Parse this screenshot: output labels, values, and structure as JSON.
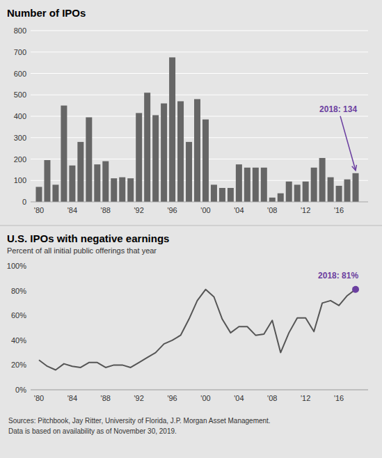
{
  "chart_data": [
    {
      "type": "bar",
      "title": "Number of IPOs",
      "x": [
        1980,
        1981,
        1982,
        1983,
        1984,
        1985,
        1986,
        1987,
        1988,
        1989,
        1990,
        1991,
        1992,
        1993,
        1994,
        1995,
        1996,
        1997,
        1998,
        1999,
        2000,
        2001,
        2002,
        2003,
        2004,
        2005,
        2006,
        2007,
        2008,
        2009,
        2010,
        2011,
        2012,
        2013,
        2014,
        2015,
        2016,
        2017,
        2018
      ],
      "values": [
        70,
        195,
        80,
        450,
        170,
        280,
        395,
        175,
        190,
        110,
        115,
        110,
        415,
        510,
        405,
        460,
        675,
        470,
        280,
        480,
        385,
        80,
        65,
        65,
        175,
        160,
        160,
        160,
        20,
        40,
        95,
        80,
        95,
        160,
        205,
        115,
        75,
        105,
        134
      ],
      "color": "#666666",
      "xlim": [
        1979,
        2019.5
      ],
      "xticks": [
        {
          "value": 1980,
          "label": "'80"
        },
        {
          "value": 1984,
          "label": "'84"
        },
        {
          "value": 1988,
          "label": "'88"
        },
        {
          "value": 1992,
          "label": "'92"
        },
        {
          "value": 1996,
          "label": "'96"
        },
        {
          "value": 2000,
          "label": "'00"
        },
        {
          "value": 2004,
          "label": "'04"
        },
        {
          "value": 2008,
          "label": "'08"
        },
        {
          "value": 2012,
          "label": "'12"
        },
        {
          "value": 2016,
          "label": "'16"
        }
      ],
      "ylim": [
        0,
        800
      ],
      "yticks": [
        0,
        100,
        200,
        300,
        400,
        500,
        600,
        700,
        800
      ],
      "grid": true,
      "annotations": [
        {
          "text": "2018: 134",
          "x": 2018,
          "y": 134,
          "color": "#6b3fa0"
        }
      ]
    },
    {
      "type": "line",
      "title": "U.S. IPOs with negative earnings",
      "subtitle": "Percent of all initial public offerings that year",
      "x": [
        1980,
        1981,
        1982,
        1983,
        1984,
        1985,
        1986,
        1987,
        1988,
        1989,
        1990,
        1991,
        1992,
        1993,
        1994,
        1995,
        1996,
        1997,
        1998,
        1999,
        2000,
        2001,
        2002,
        2003,
        2004,
        2005,
        2006,
        2007,
        2008,
        2009,
        2010,
        2011,
        2012,
        2013,
        2014,
        2015,
        2016,
        2017,
        2018
      ],
      "values": [
        0.24,
        0.19,
        0.16,
        0.21,
        0.19,
        0.18,
        0.22,
        0.22,
        0.18,
        0.2,
        0.2,
        0.18,
        0.22,
        0.26,
        0.3,
        0.37,
        0.4,
        0.44,
        0.57,
        0.72,
        0.81,
        0.75,
        0.57,
        0.46,
        0.51,
        0.51,
        0.44,
        0.45,
        0.56,
        0.3,
        0.46,
        0.58,
        0.58,
        0.47,
        0.7,
        0.72,
        0.68,
        0.76,
        0.81
      ],
      "color": "#555555",
      "xlim": [
        1979,
        2019.5
      ],
      "xticks": [
        {
          "value": 1980,
          "label": "'80"
        },
        {
          "value": 1984,
          "label": "'84"
        },
        {
          "value": 1988,
          "label": "'88"
        },
        {
          "value": 1992,
          "label": "'92"
        },
        {
          "value": 1996,
          "label": "'96"
        },
        {
          "value": 2000,
          "label": "'00"
        },
        {
          "value": 2004,
          "label": "'04"
        },
        {
          "value": 2008,
          "label": "'08"
        },
        {
          "value": 2012,
          "label": "'12"
        },
        {
          "value": 2016,
          "label": "'16"
        }
      ],
      "ylim": [
        0,
        1.0
      ],
      "yticks": [
        {
          "value": 0.0,
          "label": "0%"
        },
        {
          "value": 0.2,
          "label": "20%"
        },
        {
          "value": 0.4,
          "label": "40%"
        },
        {
          "value": 0.6,
          "label": "60%"
        },
        {
          "value": 0.8,
          "label": "80%"
        },
        {
          "value": 1.0,
          "label": "100%"
        }
      ],
      "grid": false,
      "annotations": [
        {
          "text": "2018: 81%",
          "x": 2018,
          "y": 0.81,
          "color": "#6b3fa0",
          "marker": "circle"
        }
      ],
      "source": "Sources: Pitchbook, Jay Ritter, University of Florida, J.P. Morgan Asset Management.\nData is based on availability as of November 30, 2019."
    }
  ]
}
